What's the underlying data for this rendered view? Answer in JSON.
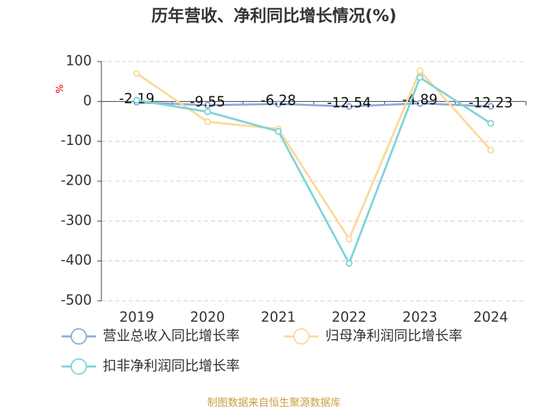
{
  "chart_data": {
    "type": "line",
    "title": "历年营收、净利同比增长情况(%)",
    "y_label": "%",
    "source": "制图数据来自恒生聚源数据库",
    "categories": [
      "2019",
      "2020",
      "2021",
      "2022",
      "2023",
      "2024"
    ],
    "series": [
      {
        "name": "营业总收入同比增长率",
        "color": "#8eaadb",
        "values": [
          -2.19,
          -9.55,
          -6.28,
          -12.54,
          -4.89,
          -12.23
        ],
        "data_labels": true
      },
      {
        "name": "归母净利润同比增长率",
        "color": "#fbd998",
        "values": [
          70,
          -51,
          -69,
          -345,
          77,
          -122
        ]
      },
      {
        "name": "扣非净利润同比增长率",
        "color": "#7dd4d8",
        "values": [
          3,
          -26,
          -75,
          -406,
          60,
          -55
        ]
      }
    ],
    "ylim": [
      -500,
      100
    ],
    "yticks": [
      -500,
      -400,
      -300,
      -200,
      -100,
      0,
      100
    ],
    "grid": true
  }
}
